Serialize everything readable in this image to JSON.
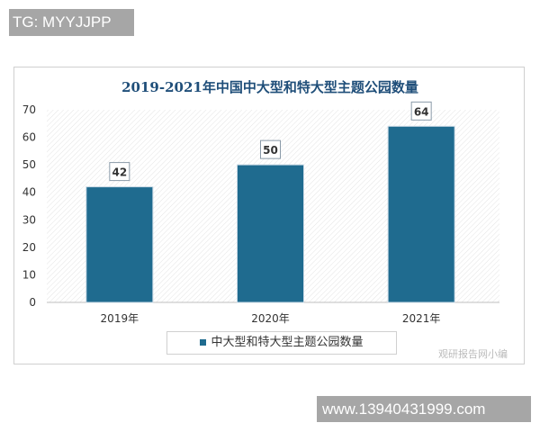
{
  "watermarks": {
    "top_left": "TG: MYYJJPP",
    "bottom_right": "www.13940431999.com",
    "logo": "观研报告网小编"
  },
  "chart_data": {
    "type": "bar",
    "title": "2019-2021年中国中大型和特大型主题公园数量",
    "categories": [
      "2019年",
      "2020年",
      "2021年"
    ],
    "series": [
      {
        "name": "中大型和特大型主题公园数量",
        "values": [
          42,
          50,
          64
        ]
      }
    ],
    "ylim": [
      0,
      70
    ],
    "yticks": [
      0,
      10,
      20,
      30,
      40,
      50,
      60,
      70
    ],
    "legend": "bottom",
    "grid": false,
    "bar_color": "#1f6b8f"
  }
}
